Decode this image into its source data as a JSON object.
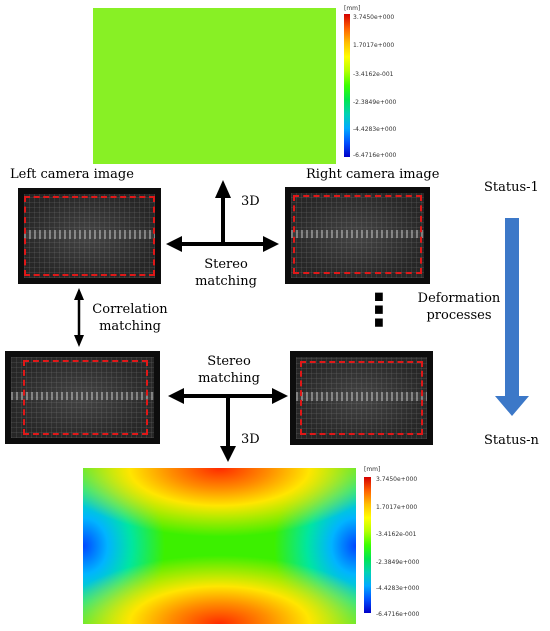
{
  "labels": {
    "left_camera": "Left camera image",
    "right_camera": "Right camera image",
    "status_1": "Status-1",
    "status_n": "Status-n",
    "three_d_top": "3D",
    "three_d_bottom": "3D",
    "stereo_top_line1": "Stereo",
    "stereo_top_line2": "matching",
    "stereo_bottom_line1": "Stereo",
    "stereo_bottom_line2": "matching",
    "correlation_line1": "Correlation",
    "correlation_line2": "matching",
    "deformation_line1": "Deformation",
    "deformation_line2": "processes",
    "ellipsis": "⋮"
  },
  "color_scale": {
    "unit": "[mm]",
    "ticks": [
      "3.7450e+000",
      "1.7017e+000",
      "-3.4162e-001",
      "-2.3849e+000",
      "-4.4283e+000",
      "-6.4716e+000"
    ]
  },
  "colors": {
    "roi": "#e01818",
    "status_arrow": "#3c78c8",
    "top_field": "#88f025"
  }
}
